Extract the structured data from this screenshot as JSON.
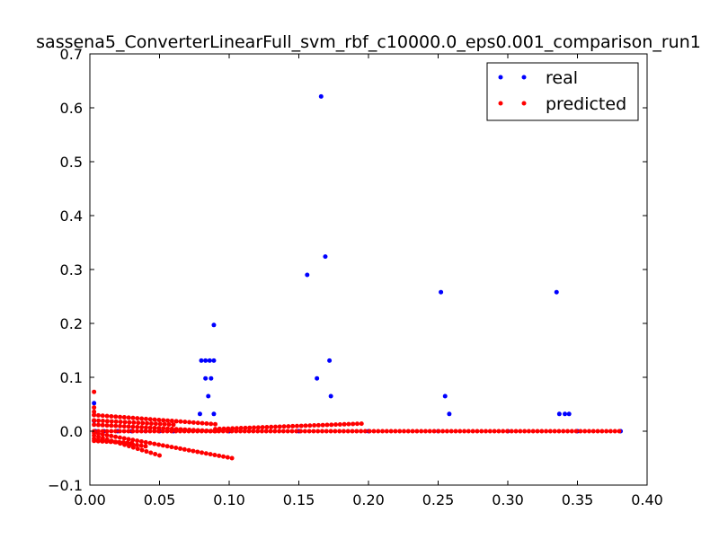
{
  "chart_data": {
    "type": "scatter",
    "title": "sassena5_ConverterLinearFull_svm_rbf_c10000.0_eps0.001_comparison_run1",
    "xlabel": "",
    "ylabel": "",
    "xlim": [
      0.0,
      0.4
    ],
    "ylim": [
      -0.1,
      0.7
    ],
    "x_ticks": [
      "0.00",
      "0.05",
      "0.10",
      "0.15",
      "0.20",
      "0.25",
      "0.30",
      "0.35",
      "0.40"
    ],
    "y_ticks": [
      "−0.1",
      "0.0",
      "0.1",
      "0.2",
      "0.3",
      "0.4",
      "0.5",
      "0.6",
      "0.7"
    ],
    "grid": false,
    "legend_position": "top-right",
    "series": [
      {
        "name": "real",
        "color": "#0000ff",
        "points": [
          [
            0.003,
            0.052
          ],
          [
            0.003,
            0.019
          ],
          [
            0.004,
            0.0
          ],
          [
            0.01,
            0.0
          ],
          [
            0.02,
            0.0
          ],
          [
            0.03,
            0.0
          ],
          [
            0.04,
            0.0
          ],
          [
            0.05,
            0.0
          ],
          [
            0.06,
            0.0
          ],
          [
            0.079,
            0.032
          ],
          [
            0.08,
            0.131
          ],
          [
            0.083,
            0.131
          ],
          [
            0.083,
            0.098
          ],
          [
            0.085,
            0.065
          ],
          [
            0.086,
            0.131
          ],
          [
            0.087,
            0.098
          ],
          [
            0.089,
            0.131
          ],
          [
            0.089,
            0.197
          ],
          [
            0.089,
            0.032
          ],
          [
            0.156,
            0.29
          ],
          [
            0.163,
            0.098
          ],
          [
            0.166,
            0.621
          ],
          [
            0.169,
            0.324
          ],
          [
            0.172,
            0.131
          ],
          [
            0.173,
            0.065
          ],
          [
            0.252,
            0.258
          ],
          [
            0.255,
            0.065
          ],
          [
            0.258,
            0.032
          ],
          [
            0.335,
            0.258
          ],
          [
            0.337,
            0.032
          ],
          [
            0.341,
            0.032
          ],
          [
            0.344,
            0.032
          ],
          [
            0.1,
            0.0
          ],
          [
            0.15,
            0.0
          ],
          [
            0.2,
            0.0
          ],
          [
            0.25,
            0.0
          ],
          [
            0.3,
            0.0
          ],
          [
            0.35,
            0.0
          ],
          [
            0.381,
            0.0
          ]
        ]
      },
      {
        "name": "predicted",
        "color": "#ff0000",
        "points": [
          [
            0.003,
            0.073
          ],
          [
            0.003,
            0.044
          ],
          [
            0.003,
            0.036
          ],
          [
            0.003,
            0.03
          ],
          [
            0.003,
            0.02
          ]
        ],
        "bands": [
          {
            "x_start": 0.003,
            "x_end": 0.38,
            "step": 0.0031,
            "y_start": 0.0,
            "y_end": 0.0
          },
          {
            "x_start": 0.003,
            "x_end": 0.09,
            "step": 0.0031,
            "y_start": 0.03,
            "y_end": 0.013
          },
          {
            "x_start": 0.09,
            "x_end": 0.195,
            "step": 0.0031,
            "y_start": 0.004,
            "y_end": 0.014
          },
          {
            "x_start": 0.003,
            "x_end": 0.06,
            "step": 0.0031,
            "y_start": 0.02,
            "y_end": 0.012
          },
          {
            "x_start": 0.003,
            "x_end": 0.09,
            "step": 0.0031,
            "y_start": 0.012,
            "y_end": 0.0
          },
          {
            "x_start": 0.003,
            "x_end": 0.102,
            "step": 0.0031,
            "y_start": -0.003,
            "y_end": -0.05
          },
          {
            "x_start": 0.003,
            "x_end": 0.05,
            "step": 0.0031,
            "y_start": -0.008,
            "y_end": -0.045
          },
          {
            "x_start": 0.003,
            "x_end": 0.04,
            "step": 0.0031,
            "y_start": -0.014,
            "y_end": -0.028
          },
          {
            "x_start": 0.003,
            "x_end": 0.03,
            "step": 0.0031,
            "y_start": -0.018,
            "y_end": -0.022
          }
        ]
      }
    ]
  }
}
